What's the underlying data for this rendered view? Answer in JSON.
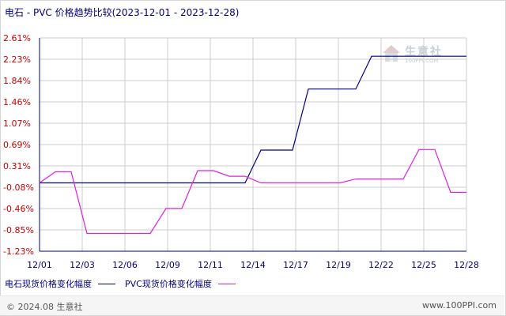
{
  "title": "电石 - PVC 价格趋势比较(2023-12-01 - 2023-12-28)",
  "footer": {
    "copyright": "© 2024.08 生意社",
    "site": "www.100PPI.com"
  },
  "watermark": {
    "text": "生意社",
    "url": "100PPI.COM"
  },
  "colors": {
    "series1": "#000080",
    "series2": "#e020e0",
    "ytick_text": "#cc0000",
    "grid": "#cccccc",
    "axis": "#000080"
  },
  "chart_data": {
    "type": "line",
    "title": "电石 - PVC 价格趋势比较(2023-12-01 - 2023-12-28)",
    "xlabel": "",
    "ylabel": "",
    "x_ticks": [
      "12/01",
      "12/03",
      "12/06",
      "12/09",
      "12/11",
      "12/14",
      "12/17",
      "12/19",
      "12/22",
      "12/25",
      "12/28"
    ],
    "y_ticks": [
      "2.61%",
      "2.23%",
      "1.84%",
      "1.46%",
      "1.07%",
      "0.69%",
      "0.31%",
      "-0.08%",
      "-0.46%",
      "-0.85%",
      "-1.23%"
    ],
    "ylim": [
      -1.23,
      2.61
    ],
    "grid": true,
    "legend_position": "bottom-left",
    "x": [
      "12/01",
      "12/02",
      "12/03",
      "12/04",
      "12/05",
      "12/06",
      "12/07",
      "12/08",
      "12/09",
      "12/10",
      "12/11",
      "12/12",
      "12/13",
      "12/14",
      "12/15",
      "12/16",
      "12/17",
      "12/18",
      "12/19",
      "12/20",
      "12/21",
      "12/22",
      "12/23",
      "12/24",
      "12/25",
      "12/26",
      "12/27",
      "12/28"
    ],
    "series": [
      {
        "name": "电石现货价格变化幅度",
        "color": "#000080",
        "values": [
          0,
          0,
          0,
          0,
          0,
          0,
          0,
          0,
          0,
          0,
          0,
          0,
          0,
          0,
          0.59,
          0.59,
          0.59,
          1.69,
          1.69,
          1.69,
          1.69,
          2.28,
          2.28,
          2.28,
          2.28,
          2.28,
          2.28,
          2.28
        ]
      },
      {
        "name": "PVC现货价格变化幅度",
        "color": "#e020e0",
        "values": [
          0,
          0.2,
          0.2,
          -0.91,
          -0.91,
          -0.91,
          -0.91,
          -0.91,
          -0.46,
          -0.46,
          0.22,
          0.22,
          0.12,
          0.12,
          0,
          0,
          0,
          0,
          0,
          0,
          0.07,
          0.07,
          0.07,
          0.07,
          0.6,
          0.6,
          -0.17,
          -0.17
        ]
      }
    ]
  }
}
